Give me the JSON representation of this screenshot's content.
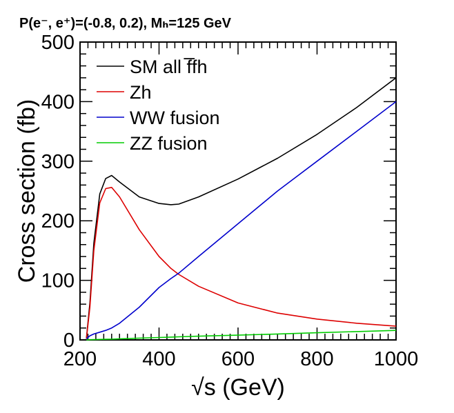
{
  "chart_data": {
    "type": "line",
    "title": "P(e⁻, e⁺)=(-0.8, 0.2), Mₕ=125 GeV",
    "xlabel": "√s (GeV)",
    "ylabel": "Cross section (fb)",
    "xlim": [
      200,
      1000
    ],
    "ylim": [
      0,
      500
    ],
    "xticks": [
      200,
      400,
      600,
      800,
      1000
    ],
    "yticks": [
      0,
      100,
      200,
      300,
      400,
      500
    ],
    "grid": false,
    "legend_position": "top-left",
    "x": [
      216,
      225,
      235,
      250,
      265,
      280,
      300,
      350,
      400,
      430,
      450,
      500,
      600,
      700,
      800,
      900,
      1000
    ],
    "series": [
      {
        "name": "SM all f̅fh",
        "color": "#000000",
        "values": [
          2,
          62,
          162,
          245,
          271,
          276,
          265,
          240,
          229,
          227,
          228,
          240,
          270,
          305,
          345,
          390,
          440
        ]
      },
      {
        "name": "Zh",
        "color": "#dd0000",
        "values": [
          2,
          55,
          150,
          230,
          254,
          256,
          240,
          185,
          140,
          120,
          110,
          90,
          62,
          45,
          35,
          28,
          23
        ]
      },
      {
        "name": "WW fusion",
        "color": "#0000cc",
        "values": [
          2,
          7,
          10,
          13,
          16,
          20,
          28,
          55,
          88,
          103,
          112,
          140,
          195,
          250,
          300,
          350,
          400
        ]
      },
      {
        "name": "ZZ fusion",
        "color": "#00cc00",
        "values": [
          0,
          0.3,
          0.5,
          0.8,
          1,
          1.3,
          1.8,
          3,
          4,
          4.8,
          5.2,
          6.2,
          8,
          10,
          12,
          14,
          16
        ]
      }
    ]
  }
}
